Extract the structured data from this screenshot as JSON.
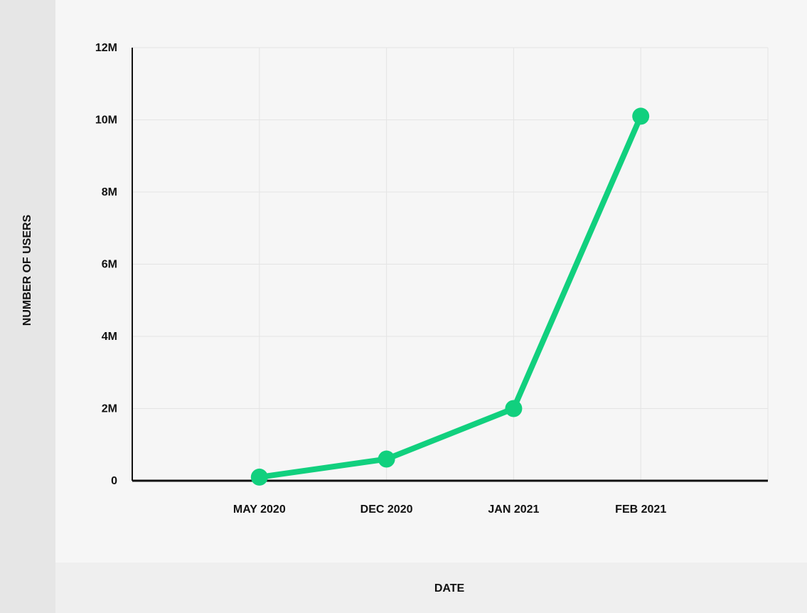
{
  "chart_data": {
    "type": "line",
    "x_label": "DATE",
    "y_label": "NUMBER OF USERS",
    "categories": [
      "MAY 2020",
      "DEC 2020",
      "JAN 2021",
      "FEB 2021"
    ],
    "values": [
      100000,
      600000,
      2000000,
      10100000
    ],
    "color": "#11d07e",
    "ylim": [
      0,
      12000000
    ],
    "yticks": [
      0,
      {
        "value": 2000000,
        "label": "2M"
      },
      {
        "value": 4000000,
        "label": "4M"
      },
      {
        "value": 6000000,
        "label": "6M"
      },
      {
        "value": 8000000,
        "label": "8M"
      },
      {
        "value": 10000000,
        "label": "10M"
      },
      {
        "value": 12000000,
        "label": "12M"
      }
    ],
    "grid": true
  }
}
